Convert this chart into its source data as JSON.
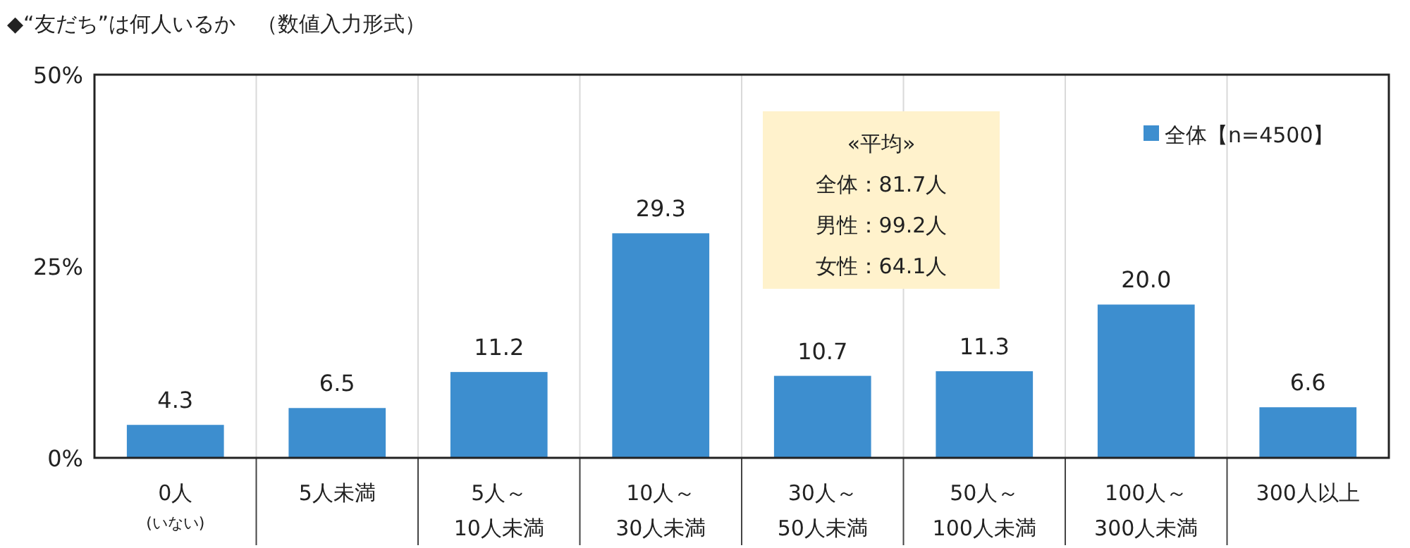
{
  "chart_data": {
    "type": "bar",
    "title": "◆“友だち”は何人いるか　（数値入力形式）",
    "categories": [
      "0人\n(いない)",
      "5人未満",
      "5人～\n10人未満",
      "10人～\n30人未満",
      "30人～\n50人未満",
      "50人～\n100人未満",
      "100人～\n300人未満",
      "300人以上"
    ],
    "series": [
      {
        "name": "全体【n=4500】",
        "color": "#3d8ecf",
        "values": [
          4.3,
          6.5,
          11.2,
          29.3,
          10.7,
          11.3,
          20.0,
          6.6
        ],
        "value_labels": [
          "4.3",
          "6.5",
          "11.2",
          "29.3",
          "10.7",
          "11.3",
          "20.0",
          "6.6"
        ]
      }
    ],
    "ylim": [
      0,
      50
    ],
    "yticks": [
      {
        "value": 0,
        "label": "0%"
      },
      {
        "value": 25,
        "label": "25%"
      },
      {
        "value": 50,
        "label": "50%"
      }
    ],
    "grid": "x",
    "legend": "top right",
    "annotations": [
      "«平均»",
      "全体：81.7人",
      "男性：99.2人",
      "女性：64.1人"
    ]
  }
}
